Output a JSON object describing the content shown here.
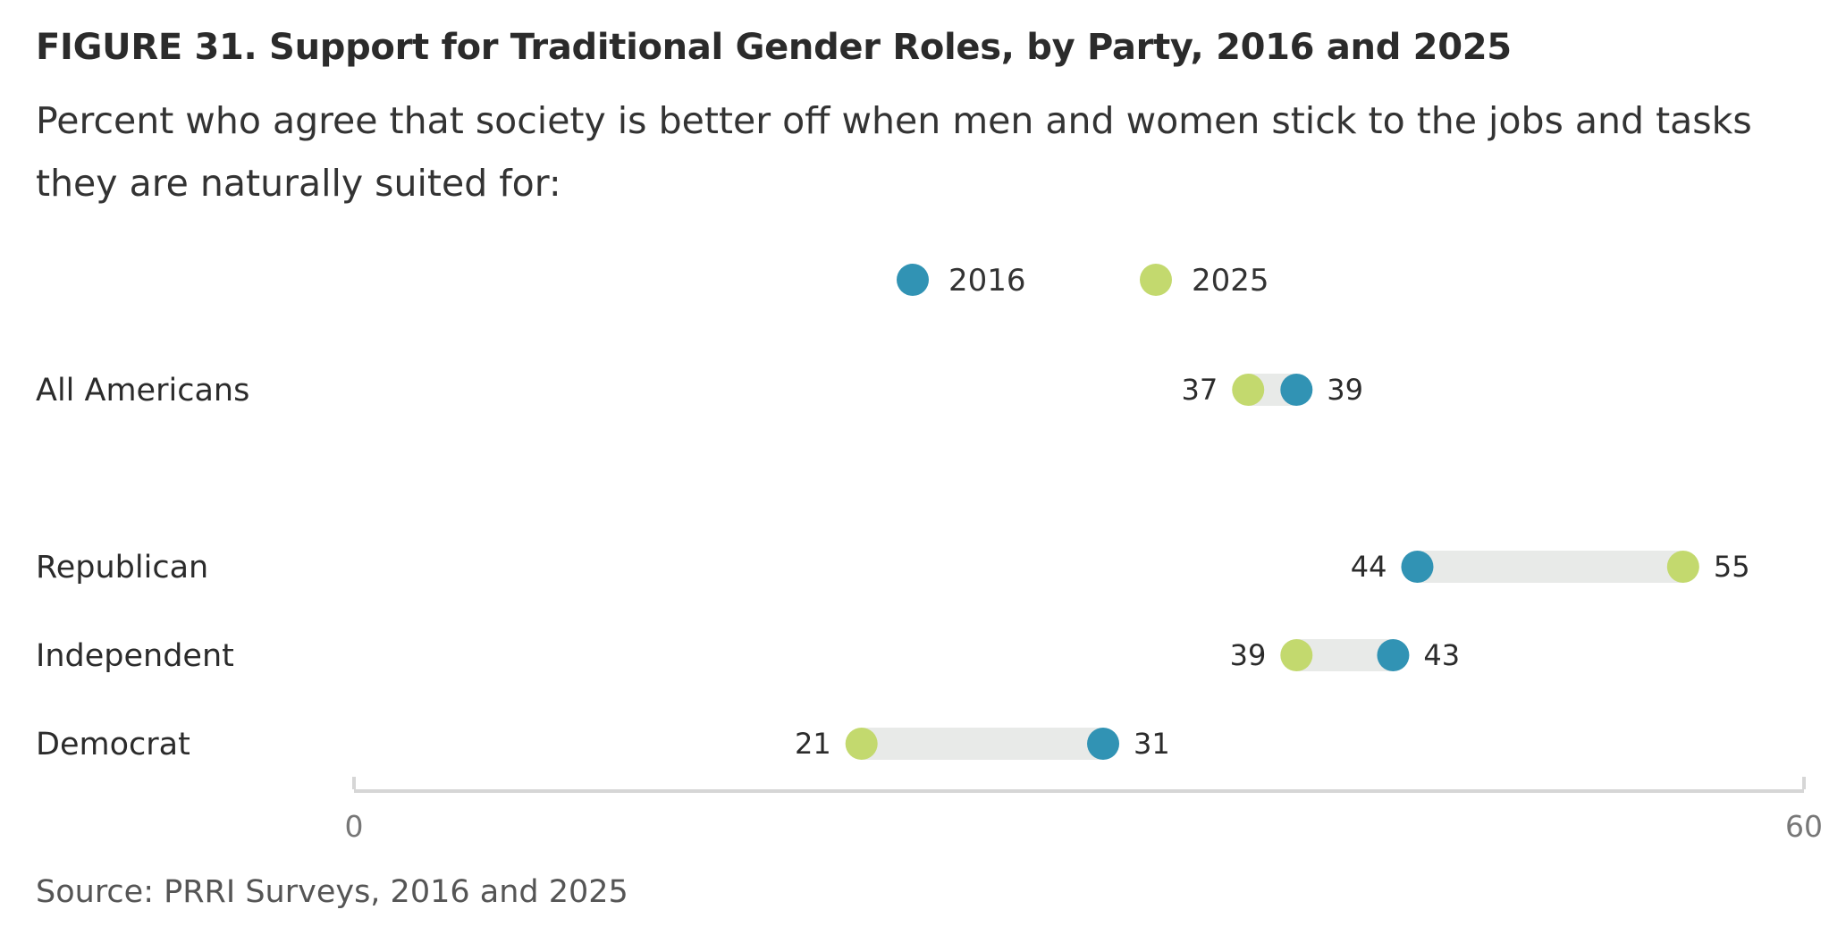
{
  "header": {
    "title": "FIGURE 31.  Support for Traditional Gender Roles, by Party, 2016 and 2025",
    "subtitle": "Percent who agree that society is better off when men and women stick to the jobs and tasks they are naturally suited for:"
  },
  "footer": {
    "source": "Source: PRRI Surveys, 2016 and 2025"
  },
  "chart_data": {
    "type": "dumbbell",
    "title": "FIGURE 31.  Support for Traditional Gender Roles, by Party, 2016 and 2025",
    "categories": [
      "All Americans",
      "Republican",
      "Independent",
      "Democrat"
    ],
    "series": [
      {
        "name": "2016",
        "color": "#3193b4",
        "values": [
          39,
          44,
          43,
          31
        ]
      },
      {
        "name": "2025",
        "color": "#c3d96e",
        "values": [
          37,
          55,
          39,
          21
        ]
      }
    ],
    "xlim": [
      0,
      60
    ],
    "x_ticks": [
      "0",
      "60"
    ],
    "legend_position": "top-center",
    "connector_color": "#e8eae8",
    "axis_color": "#d6d6d6",
    "grid": false
  }
}
